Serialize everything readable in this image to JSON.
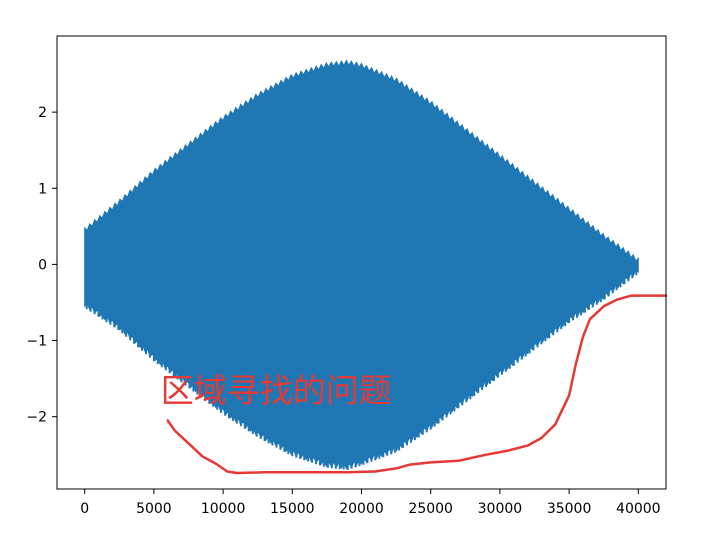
{
  "chart_data": {
    "type": "line",
    "title": "",
    "xlabel": "",
    "ylabel": "",
    "xlim": [
      -2000,
      42000
    ],
    "ylim": [
      -2.95,
      3.0
    ],
    "x_ticks": [
      0,
      5000,
      10000,
      15000,
      20000,
      25000,
      30000,
      35000,
      40000
    ],
    "y_ticks": [
      -2,
      -1,
      0,
      1,
      2
    ],
    "x_tick_labels": [
      "0",
      "5000",
      "10000",
      "15000",
      "20000",
      "25000",
      "30000",
      "35000",
      "40000"
    ],
    "y_tick_labels": [
      "−2",
      "−1",
      "0",
      "1",
      "2"
    ],
    "grid": false,
    "legend": "none",
    "series": [
      {
        "color": "#1f77b4",
        "style": "dense oscillation",
        "x_range": [
          0,
          40000
        ],
        "upper_envelope": {
          "x": [
            0,
            2500,
            5000,
            7500,
            10000,
            12500,
            15000,
            17500,
            19000,
            20000,
            22500,
            25000,
            27500,
            30000,
            32500,
            35000,
            37500,
            40000
          ],
          "y": [
            0.48,
            0.85,
            1.25,
            1.6,
            1.95,
            2.25,
            2.5,
            2.65,
            2.68,
            2.64,
            2.45,
            2.15,
            1.8,
            1.45,
            1.1,
            0.75,
            0.4,
            0.08
          ]
        },
        "lower_envelope": {
          "x": [
            0,
            2500,
            5000,
            7500,
            10000,
            12500,
            15000,
            17500,
            19000,
            20000,
            22500,
            25000,
            27500,
            30000,
            32500,
            35000,
            37500,
            40000
          ],
          "y": [
            -0.55,
            -0.85,
            -1.25,
            -1.6,
            -1.95,
            -2.25,
            -2.5,
            -2.65,
            -2.68,
            -2.62,
            -2.45,
            -2.15,
            -1.8,
            -1.45,
            -1.1,
            -0.75,
            -0.45,
            -0.1
          ]
        }
      }
    ],
    "annotations": [
      {
        "text": "区域寻找的问题",
        "color": "#e53935",
        "anchor": [
          5500,
          -1.65
        ]
      }
    ],
    "freehand_stroke": {
      "color": "#e53935",
      "x": [
        6000,
        6500,
        7500,
        8500,
        9500,
        10300,
        11000,
        13000,
        16000,
        19000,
        21000,
        22500,
        23500,
        25000,
        27000,
        29000,
        30500,
        32000,
        33000,
        34000,
        35000,
        35500,
        36000,
        36500,
        37500,
        38500,
        39500,
        41000,
        42000
      ],
      "y": [
        -2.05,
        -2.18,
        -2.35,
        -2.52,
        -2.62,
        -2.72,
        -2.74,
        -2.73,
        -2.73,
        -2.73,
        -2.72,
        -2.68,
        -2.63,
        -2.6,
        -2.58,
        -2.5,
        -2.45,
        -2.38,
        -2.28,
        -2.1,
        -1.72,
        -1.3,
        -0.95,
        -0.72,
        -0.55,
        -0.46,
        -0.41,
        -0.41,
        -0.41
      ]
    }
  }
}
